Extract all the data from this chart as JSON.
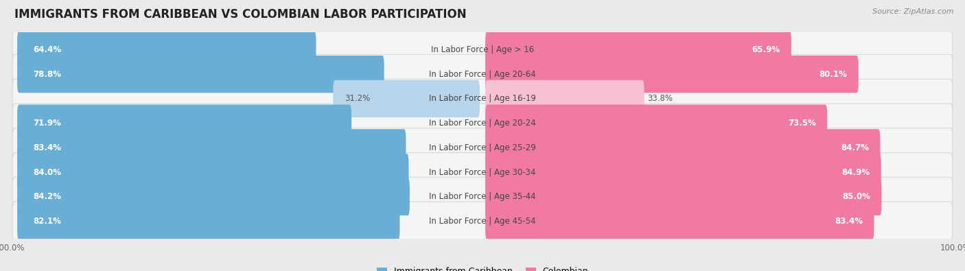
{
  "title": "IMMIGRANTS FROM CARIBBEAN VS COLOMBIAN LABOR PARTICIPATION",
  "source": "Source: ZipAtlas.com",
  "categories": [
    "In Labor Force | Age > 16",
    "In Labor Force | Age 20-64",
    "In Labor Force | Age 16-19",
    "In Labor Force | Age 20-24",
    "In Labor Force | Age 25-29",
    "In Labor Force | Age 30-34",
    "In Labor Force | Age 35-44",
    "In Labor Force | Age 45-54"
  ],
  "caribbean_values": [
    64.4,
    78.8,
    31.2,
    71.9,
    83.4,
    84.0,
    84.2,
    82.1
  ],
  "colombian_values": [
    65.9,
    80.1,
    33.8,
    73.5,
    84.7,
    84.9,
    85.0,
    83.4
  ],
  "caribbean_color": "#6aaed6",
  "colombian_color": "#f07aa0",
  "caribbean_color_light": "#b8d4eb",
  "colombian_color_light": "#f8c0d4",
  "bar_height": 0.72,
  "background_color": "#eaeaea",
  "row_bg_color": "#f5f5f5",
  "row_border_color": "#d8d8d8",
  "title_fontsize": 12,
  "label_fontsize": 8.5,
  "value_fontsize": 8.5,
  "tick_fontsize": 8.5,
  "legend_fontsize": 9
}
